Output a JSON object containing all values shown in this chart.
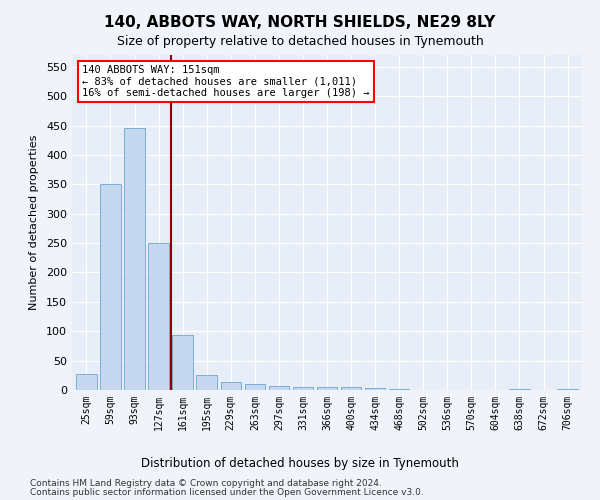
{
  "title": "140, ABBOTS WAY, NORTH SHIELDS, NE29 8LY",
  "subtitle": "Size of property relative to detached houses in Tynemouth",
  "xlabel": "Distribution of detached houses by size in Tynemouth",
  "ylabel": "Number of detached properties",
  "bar_color": "#c5d8f0",
  "bar_edge_color": "#7bafd4",
  "background_color": "#e8eef7",
  "grid_color": "#ffffff",
  "annotation_text": "140 ABBOTS WAY: 151sqm\n← 83% of detached houses are smaller (1,011)\n16% of semi-detached houses are larger (198) →",
  "categories": [
    "25sqm",
    "59sqm",
    "93sqm",
    "127sqm",
    "161sqm",
    "195sqm",
    "229sqm",
    "263sqm",
    "297sqm",
    "331sqm",
    "366sqm",
    "400sqm",
    "434sqm",
    "468sqm",
    "502sqm",
    "536sqm",
    "570sqm",
    "604sqm",
    "638sqm",
    "672sqm",
    "706sqm"
  ],
  "values": [
    27,
    350,
    445,
    250,
    93,
    25,
    14,
    10,
    7,
    5,
    5,
    5,
    4,
    1,
    0,
    0,
    0,
    0,
    2,
    0,
    2
  ],
  "ylim": [
    0,
    570
  ],
  "yticks": [
    0,
    50,
    100,
    150,
    200,
    250,
    300,
    350,
    400,
    450,
    500,
    550
  ],
  "red_line_x": 3.5,
  "footnote1": "Contains HM Land Registry data © Crown copyright and database right 2024.",
  "footnote2": "Contains public sector information licensed under the Open Government Licence v3.0."
}
